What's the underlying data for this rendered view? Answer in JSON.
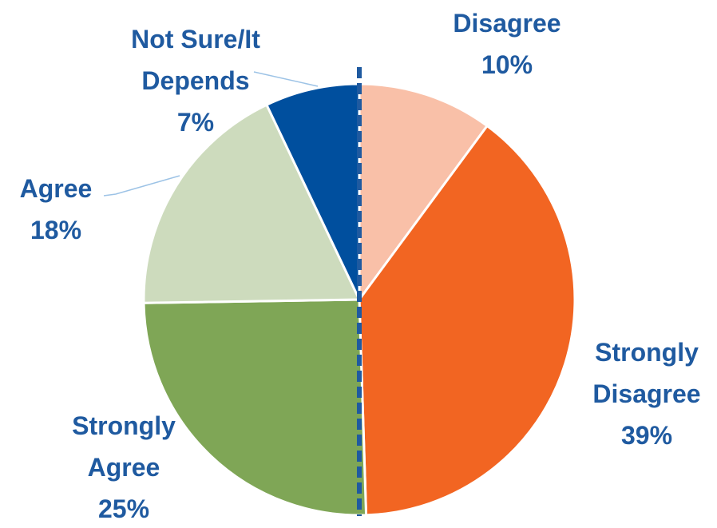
{
  "chart_data": {
    "type": "pie",
    "categories": [
      "Disagree",
      "Strongly Disagree",
      "Strongly Agree",
      "Agree",
      "Not Sure/It Depends"
    ],
    "values": [
      10,
      39,
      25,
      18,
      7
    ],
    "value_labels": [
      "10%",
      "39%",
      "25%",
      "18%",
      "7%"
    ],
    "colors": [
      "#f9c0a8",
      "#f26522",
      "#7fa656",
      "#cddbbd",
      "#004f9e"
    ]
  }
}
